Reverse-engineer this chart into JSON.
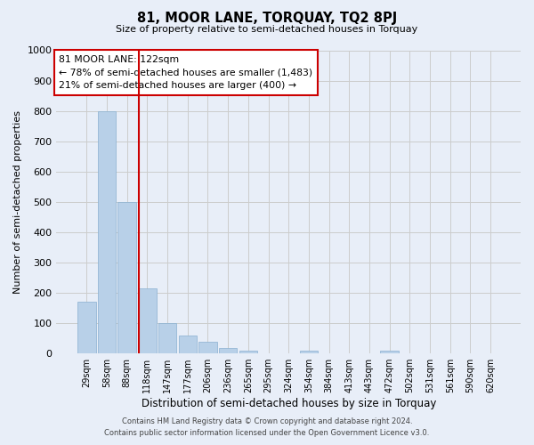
{
  "title": "81, MOOR LANE, TORQUAY, TQ2 8PJ",
  "subtitle": "Size of property relative to semi-detached houses in Torquay",
  "xlabel": "Distribution of semi-detached houses by size in Torquay",
  "ylabel": "Number of semi-detached properties",
  "categories": [
    "29sqm",
    "58sqm",
    "88sqm",
    "118sqm",
    "147sqm",
    "177sqm",
    "206sqm",
    "236sqm",
    "265sqm",
    "295sqm",
    "324sqm",
    "354sqm",
    "384sqm",
    "413sqm",
    "443sqm",
    "472sqm",
    "502sqm",
    "531sqm",
    "561sqm",
    "590sqm",
    "620sqm"
  ],
  "bar_values": [
    170,
    800,
    500,
    215,
    100,
    58,
    40,
    18,
    8,
    0,
    0,
    8,
    0,
    0,
    0,
    8,
    0,
    0,
    0,
    0,
    0
  ],
  "bar_color": "#b8d0e8",
  "bar_edge_color": "#8ab0d0",
  "grid_color": "#cccccc",
  "bg_color": "#e8eef8",
  "vline_color": "#cc0000",
  "annotation_title": "81 MOOR LANE: 122sqm",
  "annotation_line1": "← 78% of semi-detached houses are smaller (1,483)",
  "annotation_line2": "21% of semi-detached houses are larger (400) →",
  "annotation_box_color": "#cc0000",
  "footer_line1": "Contains HM Land Registry data © Crown copyright and database right 2024.",
  "footer_line2": "Contains public sector information licensed under the Open Government Licence v3.0.",
  "ylim": [
    0,
    1000
  ],
  "yticks": [
    0,
    100,
    200,
    300,
    400,
    500,
    600,
    700,
    800,
    900,
    1000
  ]
}
